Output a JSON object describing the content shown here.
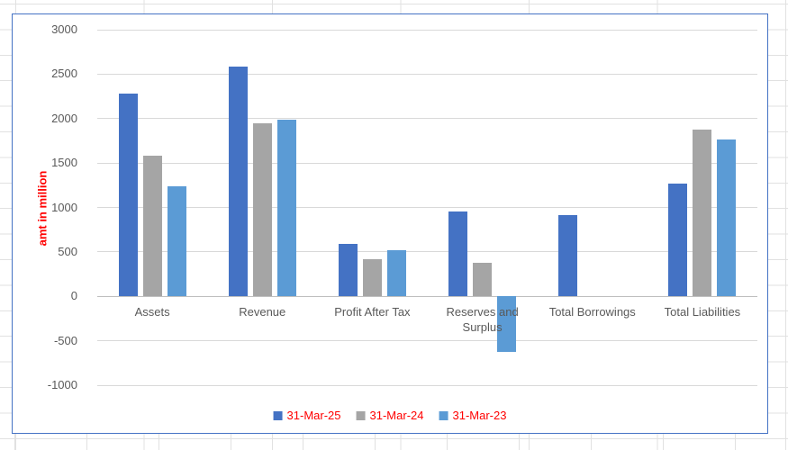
{
  "sheet": {
    "gridline_color": "#e1e1e1"
  },
  "chart": {
    "border_color": "#4472C4",
    "background": "#ffffff",
    "tick_label_color": "#595959",
    "category_label_color": "#595959",
    "gridline_color": "#D9D9D9",
    "zero_line_color": "#BFBFBF",
    "axis_title_color": "#FF0000",
    "legend_text_color": "#FF0000"
  },
  "chart_data": {
    "type": "bar",
    "title": "",
    "xlabel": "",
    "ylabel": "amt in million",
    "ylim": [
      -1000,
      3000
    ],
    "ytick_step": 500,
    "ytick_labels": [
      "3000",
      "2500",
      "2000",
      "1500",
      "1000",
      "500",
      "0",
      "-500",
      "-1000"
    ],
    "grid": true,
    "legend_position": "bottom",
    "categories": [
      "Assets",
      "Revenue",
      "Profit After Tax",
      "Reserves and Surplus",
      "Total Borrowings",
      "Total Liabilities"
    ],
    "series": [
      {
        "name": "31-Mar-25",
        "color": "#4472C4",
        "values": [
          2280,
          2580,
          590,
          950,
          910,
          1270
        ]
      },
      {
        "name": "31-Mar-24",
        "color": "#A5A5A5",
        "values": [
          1580,
          1950,
          420,
          380,
          null,
          1880
        ]
      },
      {
        "name": "31-Mar-23",
        "color": "#5B9BD5",
        "values": [
          1240,
          1990,
          520,
          -630,
          null,
          1760
        ]
      }
    ]
  }
}
